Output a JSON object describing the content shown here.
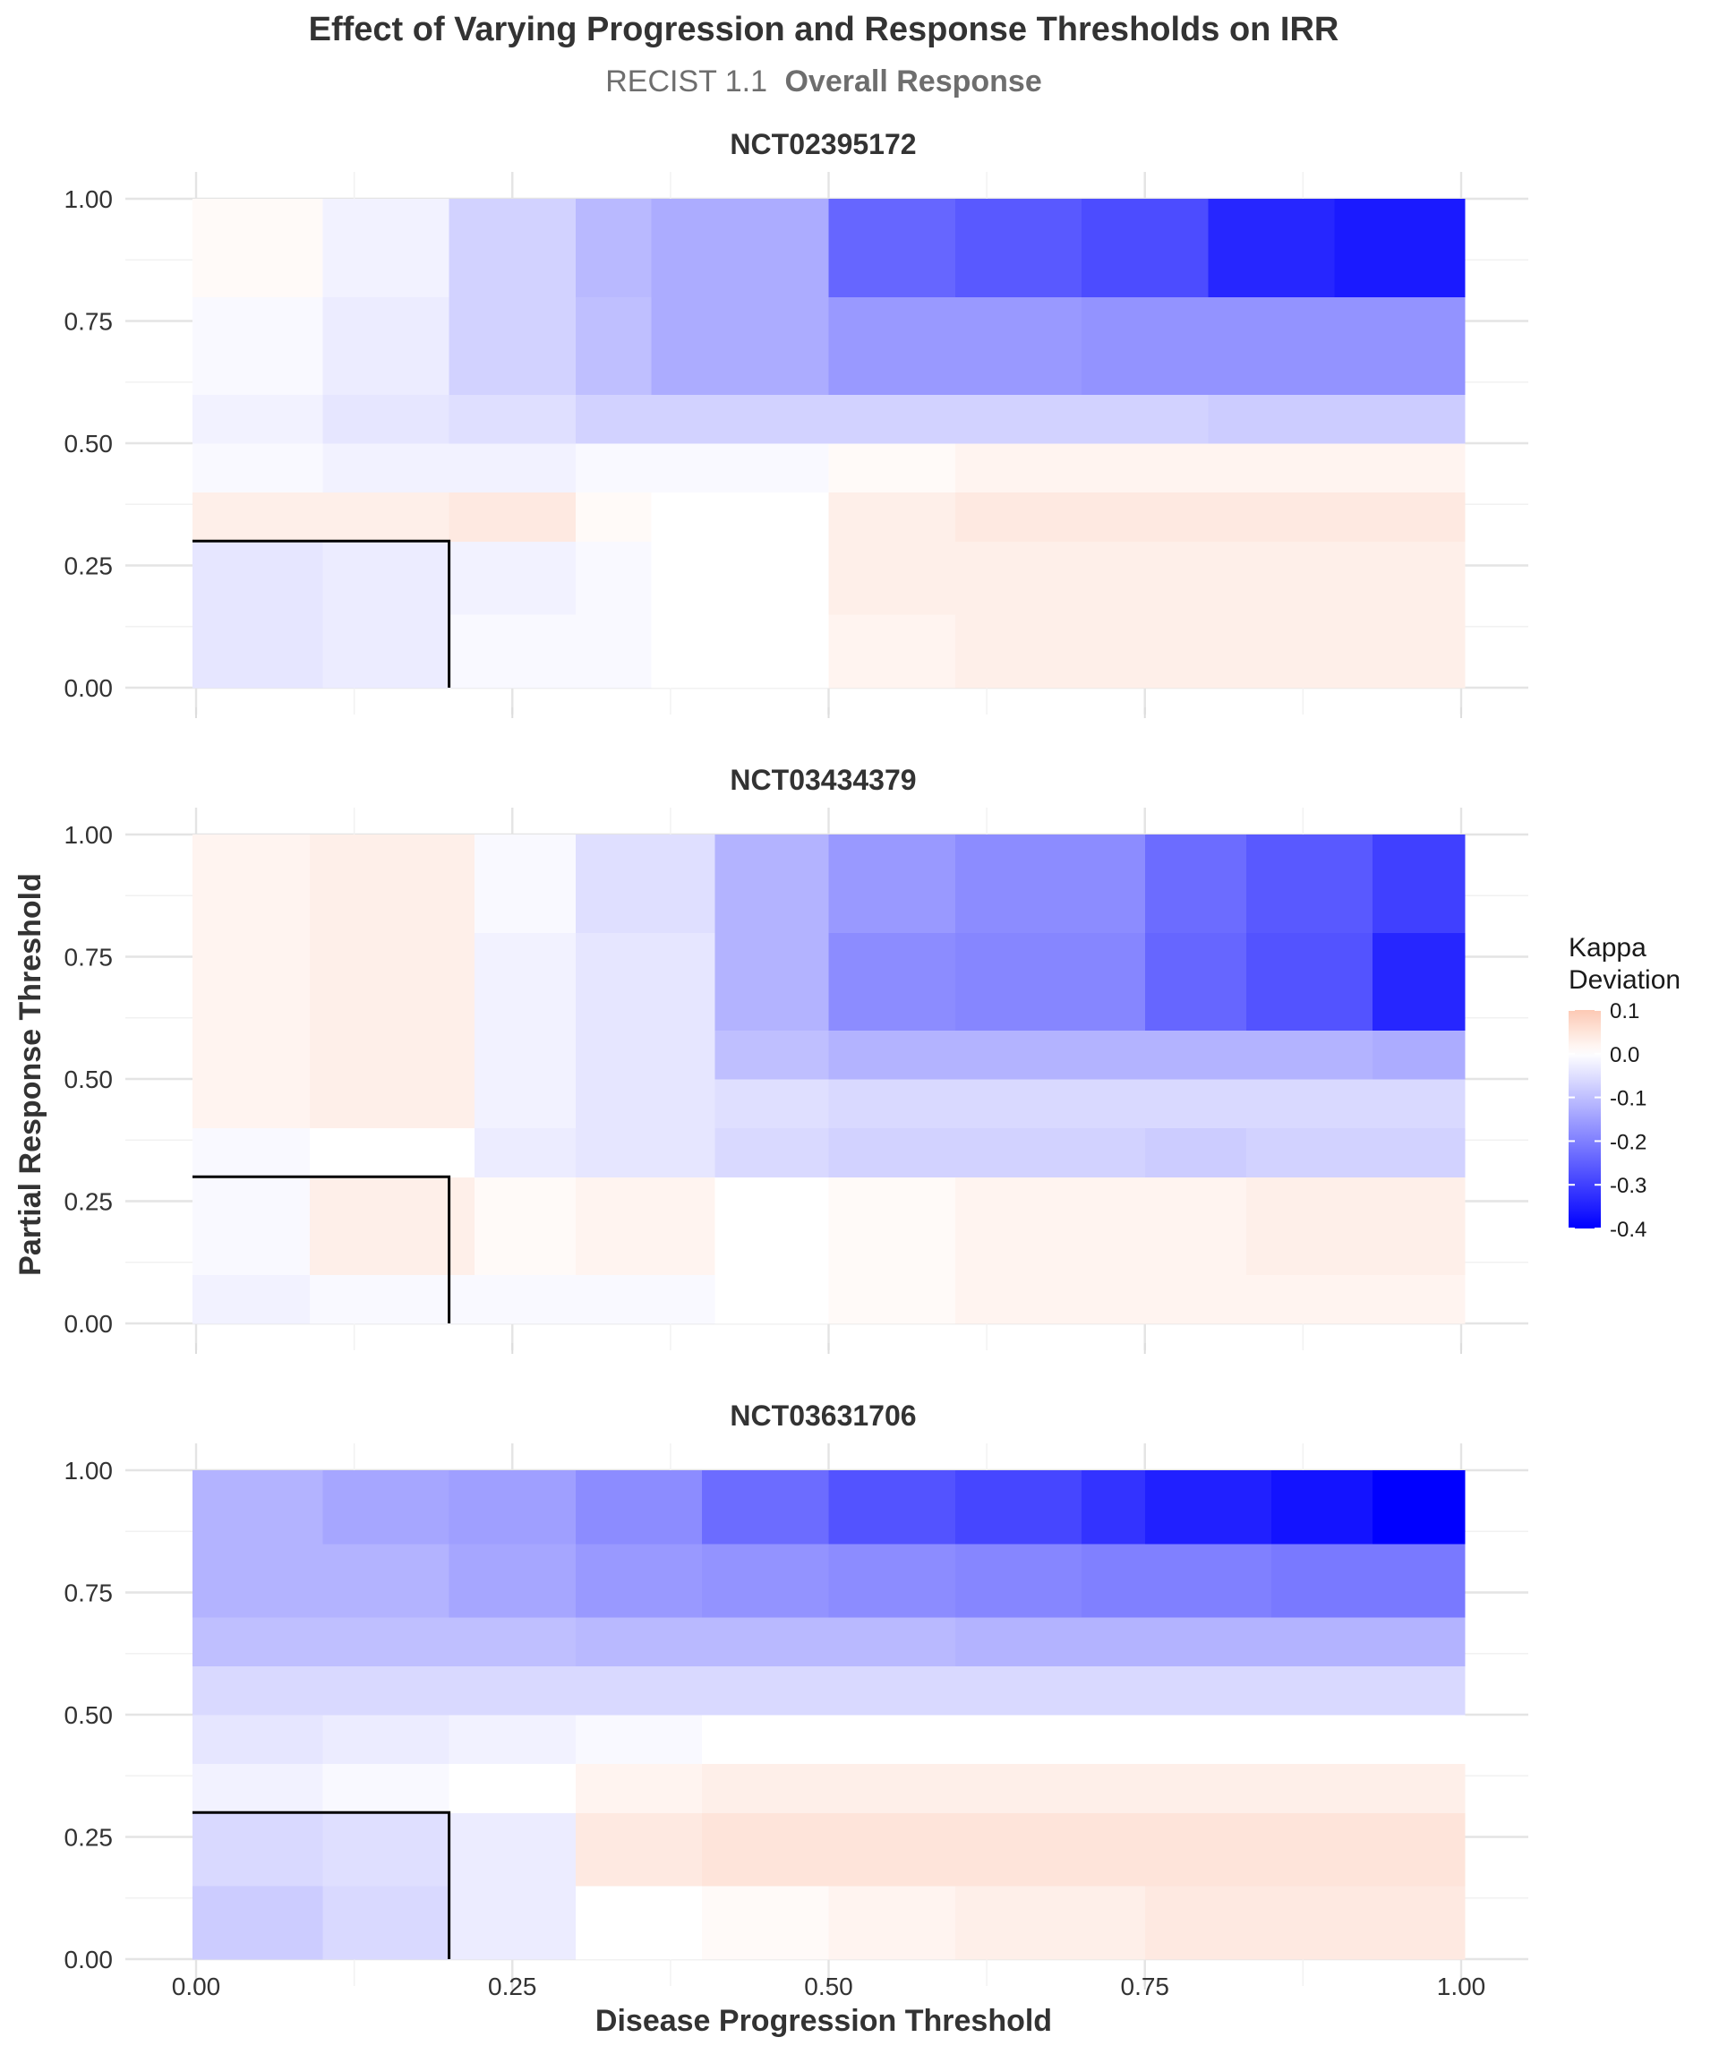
{
  "chart_data": {
    "type": "heatmap",
    "title": "Effect of Varying Progression and Response Thresholds on IRR",
    "subtitle_plain": "RECIST 1.1",
    "subtitle_bold": "Overall Response",
    "xlabel": "Disease Progression Threshold",
    "ylabel": "Partial Response Threshold",
    "xlim": [
      0,
      1
    ],
    "ylim": [
      0,
      1
    ],
    "x_ticks": [
      "0.00",
      "0.25",
      "0.50",
      "0.75",
      "1.00"
    ],
    "y_ticks": [
      "0.00",
      "0.25",
      "0.50",
      "0.75",
      "1.00"
    ],
    "grid": true,
    "color_scale": {
      "low": -0.4,
      "mid": 0.0,
      "high": 0.1,
      "low_color": "#0000ff",
      "mid_color": "#ffffff",
      "high_color": "#fdc9b4"
    },
    "legend": {
      "title_line1": "Kappa",
      "title_line2": "Deviation",
      "position": "right",
      "labels": [
        "0.1",
        "0.0",
        "-0.1",
        "-0.2",
        "-0.3",
        "-0.4"
      ],
      "values": [
        0.1,
        0.0,
        -0.1,
        -0.2,
        -0.3,
        -0.4
      ]
    },
    "reference_box": {
      "x_max": 0.2,
      "y_max": 0.3
    },
    "panels": [
      {
        "name": "NCT02395172",
        "x_breaks": [
          0,
          0.1,
          0.2,
          0.3,
          0.36,
          0.5,
          0.6,
          0.7,
          0.8,
          0.9,
          1.0
        ],
        "y_breaks": [
          0,
          0.15,
          0.3,
          0.4,
          0.5,
          0.6,
          0.8,
          1.0
        ],
        "z": [
          [
            -0.04,
            -0.03,
            -0.01,
            -0.01,
            0.0,
            0.02,
            0.03,
            0.03,
            0.03,
            0.03
          ],
          [
            -0.04,
            -0.03,
            -0.02,
            -0.01,
            0.0,
            0.03,
            0.03,
            0.03,
            0.03,
            0.03
          ],
          [
            0.03,
            0.03,
            0.04,
            0.01,
            0.0,
            0.03,
            0.04,
            0.04,
            0.04,
            0.04
          ],
          [
            -0.01,
            -0.02,
            -0.02,
            -0.01,
            -0.01,
            0.01,
            0.02,
            0.02,
            0.02,
            0.02
          ],
          [
            -0.02,
            -0.04,
            -0.05,
            -0.07,
            -0.07,
            -0.07,
            -0.07,
            -0.07,
            -0.08,
            -0.08
          ],
          [
            -0.01,
            -0.03,
            -0.07,
            -0.1,
            -0.13,
            -0.16,
            -0.16,
            -0.17,
            -0.17,
            -0.17
          ],
          [
            0.01,
            -0.02,
            -0.07,
            -0.11,
            -0.13,
            -0.24,
            -0.26,
            -0.28,
            -0.34,
            -0.36
          ]
        ]
      },
      {
        "name": "NCT03434379",
        "x_breaks": [
          0,
          0.09,
          0.22,
          0.3,
          0.41,
          0.5,
          0.6,
          0.75,
          0.83,
          0.93,
          1.0
        ],
        "y_breaks": [
          0,
          0.1,
          0.3,
          0.4,
          0.5,
          0.6,
          0.8,
          1.0
        ],
        "z": [
          [
            -0.02,
            -0.01,
            -0.01,
            -0.01,
            0.0,
            0.01,
            0.02,
            0.02,
            0.02,
            0.02
          ],
          [
            -0.01,
            0.03,
            0.01,
            0.02,
            0.0,
            0.01,
            0.02,
            0.02,
            0.03,
            0.03
          ],
          [
            -0.01,
            0.0,
            -0.03,
            -0.04,
            -0.06,
            -0.07,
            -0.07,
            -0.08,
            -0.07,
            -0.07
          ],
          [
            0.02,
            0.03,
            -0.02,
            -0.04,
            -0.05,
            -0.06,
            -0.06,
            -0.06,
            -0.06,
            -0.06
          ],
          [
            0.02,
            0.03,
            -0.02,
            -0.04,
            -0.1,
            -0.12,
            -0.12,
            -0.12,
            -0.12,
            -0.13
          ],
          [
            0.02,
            0.03,
            -0.02,
            -0.04,
            -0.12,
            -0.18,
            -0.19,
            -0.24,
            -0.27,
            -0.34
          ],
          [
            0.02,
            0.03,
            -0.01,
            -0.05,
            -0.12,
            -0.16,
            -0.18,
            -0.23,
            -0.26,
            -0.3
          ]
        ]
      },
      {
        "name": "NCT03631706",
        "x_breaks": [
          0,
          0.1,
          0.2,
          0.3,
          0.4,
          0.5,
          0.6,
          0.7,
          0.75,
          0.85,
          0.93,
          1.0
        ],
        "y_breaks": [
          0,
          0.15,
          0.3,
          0.4,
          0.5,
          0.6,
          0.7,
          0.85,
          1.0
        ],
        "z": [
          [
            -0.08,
            -0.06,
            -0.03,
            0.0,
            0.01,
            0.02,
            0.03,
            0.03,
            0.04,
            0.04,
            0.04
          ],
          [
            -0.06,
            -0.05,
            -0.03,
            0.04,
            0.05,
            0.05,
            0.05,
            0.05,
            0.05,
            0.05,
            0.05
          ],
          [
            -0.02,
            -0.01,
            0.0,
            0.02,
            0.03,
            0.03,
            0.03,
            0.03,
            0.03,
            0.03,
            0.03
          ],
          [
            -0.04,
            -0.03,
            -0.02,
            -0.01,
            0.0,
            0.0,
            0.0,
            0.0,
            0.0,
            0.0,
            0.0
          ],
          [
            -0.06,
            -0.06,
            -0.06,
            -0.06,
            -0.06,
            -0.06,
            -0.06,
            -0.06,
            -0.06,
            -0.06,
            -0.06
          ],
          [
            -0.1,
            -0.1,
            -0.1,
            -0.11,
            -0.11,
            -0.11,
            -0.12,
            -0.12,
            -0.12,
            -0.12,
            -0.12
          ],
          [
            -0.12,
            -0.12,
            -0.14,
            -0.16,
            -0.17,
            -0.18,
            -0.19,
            -0.2,
            -0.2,
            -0.21,
            -0.21
          ],
          [
            -0.12,
            -0.14,
            -0.15,
            -0.18,
            -0.23,
            -0.27,
            -0.29,
            -0.32,
            -0.35,
            -0.37,
            -0.42
          ]
        ]
      }
    ]
  }
}
